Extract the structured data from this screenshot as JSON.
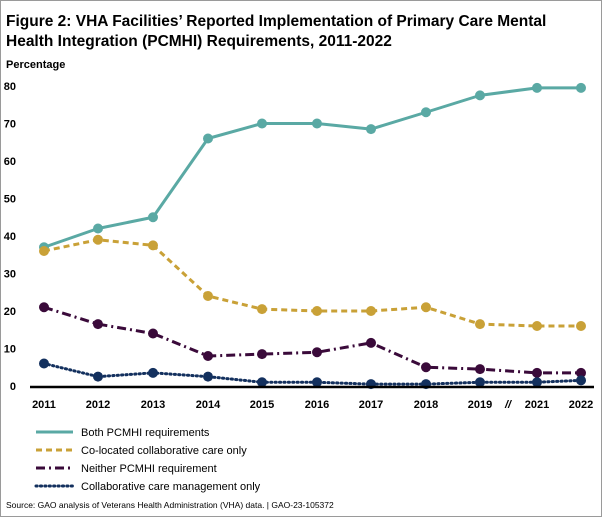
{
  "chart_data": {
    "type": "line",
    "title": "Figure 2: VHA Facilities’ Reported Implementation of Primary Care Mental Health Integration (PCMHI) Requirements, 2011-2022",
    "ylabel": "Percentage",
    "xlabel": "",
    "categories": [
      "2011",
      "2012",
      "2013",
      "2014",
      "2015",
      "2016",
      "2017",
      "2018",
      "2019",
      "2021",
      "2022"
    ],
    "axis_break_marker": "//",
    "ylim": [
      0,
      80
    ],
    "yticks": [
      "0",
      "10",
      "20",
      "30",
      "40",
      "50",
      "60",
      "70",
      "80"
    ],
    "grid": false,
    "legend_position": "bottom-left",
    "series": [
      {
        "name": "Both PCMHI requirements",
        "style": "solid",
        "color": "#5aa9a4",
        "values": [
          37,
          42,
          45,
          66,
          70,
          70,
          68.5,
          73,
          77.5,
          79.5,
          79.5
        ]
      },
      {
        "name": "Co-located collaborative care only",
        "style": "dashed",
        "color": "#c9a137",
        "values": [
          36,
          39,
          37.5,
          24,
          20.5,
          20,
          20,
          21,
          16.5,
          16,
          16
        ]
      },
      {
        "name": "Neither PCMHI requirement",
        "style": "dashdot",
        "color": "#3a0a3a",
        "values": [
          21,
          16.5,
          14,
          8,
          8.5,
          9,
          11.5,
          5,
          4.5,
          3.5,
          3.5
        ]
      },
      {
        "name": "Collaborative care management only",
        "style": "dotted",
        "color": "#13305e",
        "values": [
          6,
          2.5,
          3.5,
          2.5,
          1,
          1,
          0.5,
          0.5,
          1,
          1,
          1.5
        ]
      }
    ],
    "source": "Source: GAO analysis of Veterans Health Administration (VHA) data.  |  GAO-23-105372"
  }
}
